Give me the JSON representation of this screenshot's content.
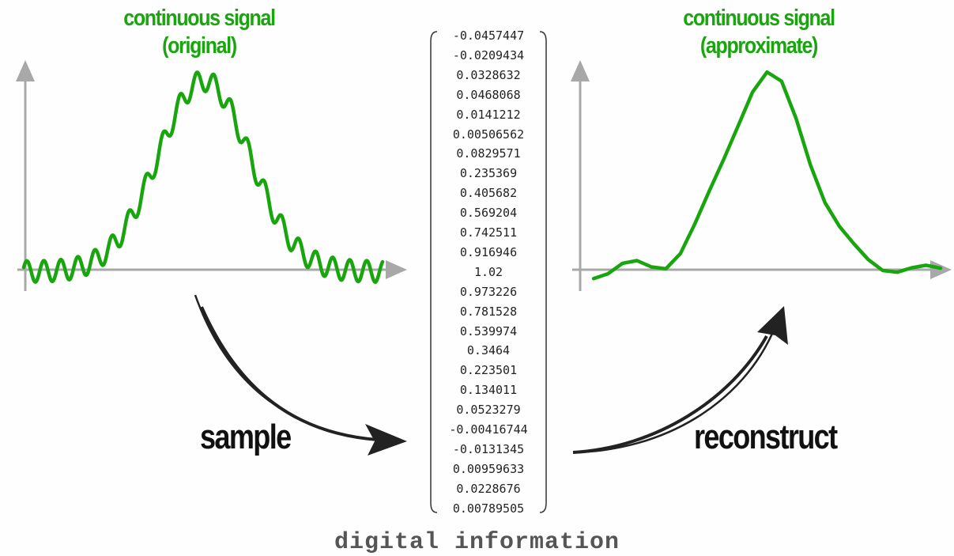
{
  "colors": {
    "signal": "#19a50e",
    "axis": "#a8a8a8",
    "arrow": "#222222",
    "text": "#111111",
    "footer": "#555555"
  },
  "left_panel": {
    "title_line1": "continuous signal",
    "title_line2": "(original)"
  },
  "right_panel": {
    "title_line1": "continuous signal",
    "title_line2": "(approximate)"
  },
  "arrows": {
    "sample_label": "sample",
    "reconstruct_label": "reconstruct"
  },
  "samples": [
    "-0.0457447",
    "-0.0209434",
    "0.0328632",
    "0.0468068",
    "0.0141212",
    "0.00506562",
    "0.0829571",
    "0.235369",
    "0.405682",
    "0.569204",
    "0.742511",
    "0.916946",
    "1.02",
    "0.973226",
    "0.781528",
    "0.539974",
    "0.3464",
    "0.223501",
    "0.134011",
    "0.0523279",
    "-0.00416744",
    "-0.0131345",
    "0.00959633",
    "0.0228676",
    "0.00789505"
  ],
  "footer": "digital information"
}
